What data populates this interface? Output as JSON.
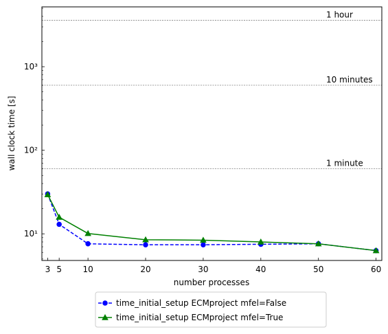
{
  "chart_data": {
    "type": "line",
    "title": "",
    "xlabel": "number processes",
    "ylabel": "wall clock time [s]",
    "yscale": "log",
    "xlim": [
      2,
      61
    ],
    "ylim": [
      4.8,
      5200
    ],
    "xticks": [
      3,
      5,
      10,
      20,
      30,
      40,
      50,
      60
    ],
    "yticks": [
      10,
      100,
      1000
    ],
    "ytick_labels": [
      "10¹",
      "10²",
      "10³"
    ],
    "grid": false,
    "legend_position": "below plot",
    "series": [
      {
        "name": "time_initial_setup ECMproject mfel=False",
        "color": "#0000ff",
        "linestyle": "dashed",
        "marker": "circle",
        "x": [
          3,
          5,
          10,
          20,
          30,
          40,
          50,
          60
        ],
        "values": [
          30.0,
          13.0,
          7.6,
          7.4,
          7.4,
          7.5,
          7.6,
          6.3
        ]
      },
      {
        "name": "time_initial_setup ECMproject mfel=True",
        "color": "#008000",
        "linestyle": "solid",
        "marker": "triangle",
        "x": [
          3,
          5,
          10,
          20,
          30,
          40,
          50,
          60
        ],
        "values": [
          29.5,
          15.8,
          10.1,
          8.5,
          8.4,
          8.0,
          7.6,
          6.3
        ]
      }
    ],
    "reference_lines": [
      {
        "label": "1 minute",
        "value": 60,
        "color": "#808080"
      },
      {
        "label": "10 minutes",
        "value": 600,
        "color": "#808080"
      },
      {
        "label": "1 hour",
        "value": 3600,
        "color": "#808080"
      }
    ]
  }
}
